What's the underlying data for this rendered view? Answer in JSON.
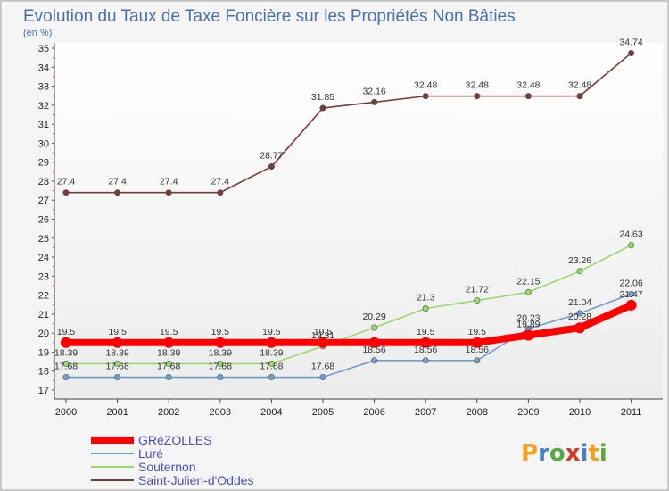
{
  "chart_data": {
    "type": "line",
    "title": "Evolution du Taux de Taxe Foncière sur les Propriétés Non Bâties",
    "subtitle": "(en %)",
    "xlabel": "",
    "ylabel": "",
    "ylim": [
      17,
      35
    ],
    "y_ticks": [
      17,
      18,
      19,
      20,
      21,
      22,
      23,
      24,
      25,
      26,
      27,
      28,
      29,
      30,
      31,
      32,
      33,
      34,
      35
    ],
    "grid": "none",
    "categories": [
      "2000",
      "2001",
      "2002",
      "2003",
      "2004",
      "2005",
      "2006",
      "2007",
      "2008",
      "2009",
      "2010",
      "2011"
    ],
    "series": [
      {
        "name": "Saint-Julien-d'Oddes",
        "color": "#7a3a3a",
        "values": [
          27.4,
          27.4,
          27.4,
          27.4,
          28.77,
          31.85,
          32.16,
          32.48,
          32.48,
          32.48,
          32.48,
          34.74
        ],
        "labels": [
          "27.4",
          "27.4",
          "27.4",
          "27.4",
          "28.77",
          "31.85",
          "32.16",
          "32.48",
          "32.48",
          "32.48",
          "32.48",
          "34.74"
        ]
      },
      {
        "name": "Souternon",
        "color": "#99d96b",
        "values": [
          18.39,
          18.39,
          18.39,
          18.39,
          18.39,
          19.31,
          20.29,
          21.3,
          21.72,
          22.15,
          23.26,
          24.63
        ],
        "labels": [
          "18.39",
          "18.39",
          "18.39",
          "18.39",
          "18.39",
          "19.31",
          "20.29",
          "21.3",
          "21.72",
          "22.15",
          "23.26",
          "24.63"
        ]
      },
      {
        "name": "Luré",
        "color": "#6f9fcf",
        "values": [
          17.68,
          17.68,
          17.68,
          17.68,
          17.68,
          17.68,
          18.56,
          18.56,
          18.56,
          20.23,
          21.04,
          22.06
        ],
        "labels": [
          "17.68",
          "17.68",
          "17.68",
          "17.68",
          "17.68",
          "17.68",
          "18.56",
          "18.56",
          "18.56",
          "20.23",
          "21.04",
          "22.06"
        ]
      },
      {
        "name": "GRéZOLLES",
        "color": "#ff0000",
        "values": [
          19.5,
          19.5,
          19.5,
          19.5,
          19.5,
          19.5,
          19.5,
          19.5,
          19.5,
          19.89,
          20.28,
          21.47
        ],
        "labels": [
          "19.5",
          "19.5",
          "19.5",
          "19.5",
          "19.5",
          "19.5",
          "",
          "19.5",
          "19.5",
          "19.89",
          "20.28",
          "21.47"
        ]
      }
    ],
    "legend": {
      "placement": "bottom-left",
      "entries": [
        "GRéZOLLES",
        "Luré",
        "Souternon",
        "Saint-Julien-d'Oddes"
      ]
    }
  },
  "logo": {
    "letters": [
      "P",
      "r",
      "o",
      "x",
      "i",
      "t",
      "i"
    ],
    "colors": [
      "#f4a020",
      "#4a7ec8",
      "#5aa844",
      "#d83a2a",
      "#4a7ec8",
      "#f4a020",
      "#5aa844"
    ]
  }
}
